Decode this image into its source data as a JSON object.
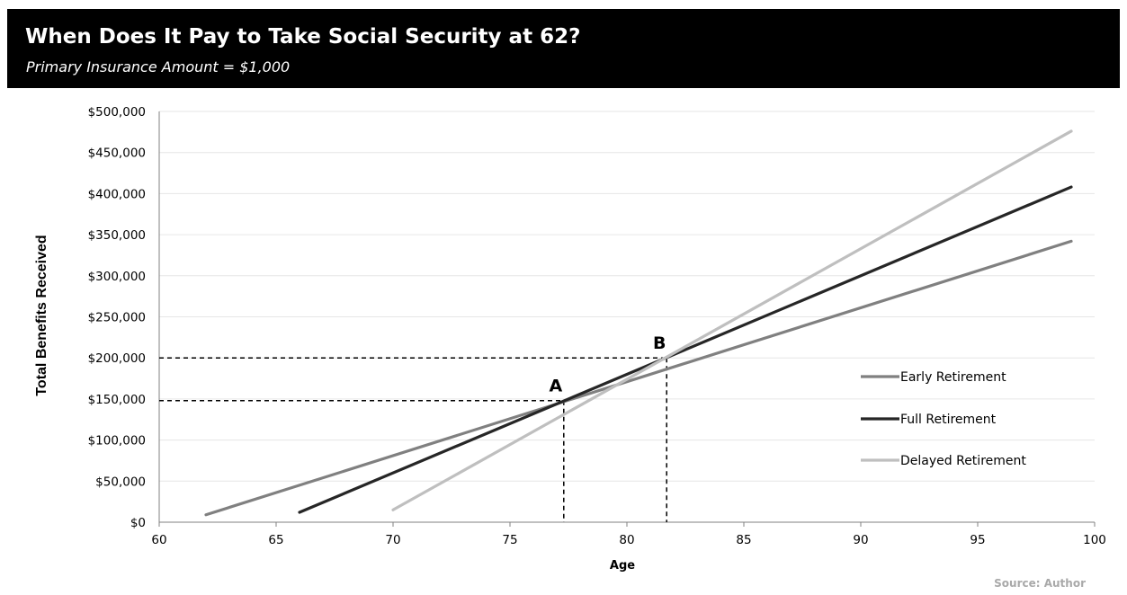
{
  "header": {
    "title": "When Does It Pay to Take Social Security at 62?",
    "subtitle": "Primary Insurance Amount = $1,000"
  },
  "source": "Source: Author",
  "colors": {
    "header_bg": "#000000",
    "early": "#808080",
    "full": "#262626",
    "delayed": "#bfbfbf",
    "grid": "#e6e6e6"
  },
  "chart_data": {
    "type": "line",
    "xlabel": "Age",
    "ylabel": "Total Benefits Received",
    "xlim": [
      60,
      100
    ],
    "ylim": [
      0,
      500000
    ],
    "x_ticks": [
      "60",
      "65",
      "70",
      "75",
      "80",
      "85",
      "90",
      "95",
      "100"
    ],
    "y_ticks": [
      "$0",
      "$50,000",
      "$100,000",
      "$150,000",
      "$200,000",
      "$250,000",
      "$300,000",
      "$350,000",
      "$400,000",
      "$450,000",
      "$500,000"
    ],
    "grid": "horizontal",
    "legend_position": "right",
    "series": [
      {
        "name": "Early Retirement",
        "x": [
          62,
          99
        ],
        "y": [
          9000,
          342000
        ]
      },
      {
        "name": "Full Retirement",
        "x": [
          66,
          99
        ],
        "y": [
          12000,
          408000
        ]
      },
      {
        "name": "Delayed Retirement",
        "x": [
          70,
          99
        ],
        "y": [
          15000,
          476000
        ]
      }
    ],
    "annotations": [
      {
        "label": "A",
        "x": 77.3,
        "y": 148000
      },
      {
        "label": "B",
        "x": 81.7,
        "y": 200000
      }
    ]
  }
}
